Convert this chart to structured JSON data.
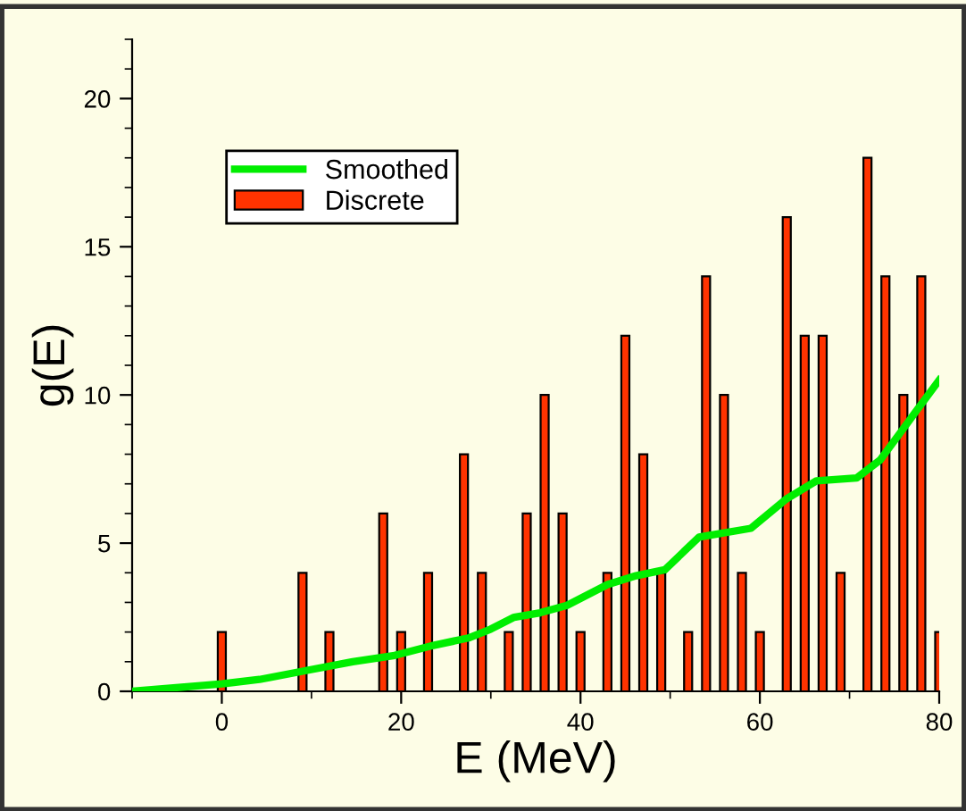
{
  "chart_data": {
    "type": "bar",
    "xlabel": "E (MeV)",
    "ylabel": "g(E)",
    "x": [
      0,
      9,
      12,
      18,
      20,
      23,
      27,
      29,
      32,
      34,
      36,
      38,
      40,
      43,
      45,
      47,
      49,
      52,
      54,
      56,
      58,
      60,
      63,
      65,
      67,
      69,
      72,
      74,
      76,
      78,
      80
    ],
    "series": [
      {
        "name": "Smoothed",
        "type": "line",
        "color": "#00ee00",
        "x": [
          -10,
          0,
          4.2,
          9.4,
          14.6,
          19.1,
          23.6,
          27.5,
          30,
          32.6,
          35.5,
          38.5,
          43,
          46.2,
          49.4,
          53.2,
          59,
          63,
          66.3,
          70.8,
          73.4,
          77.3,
          80
        ],
        "values": [
          0,
          0.25,
          0.4,
          0.7,
          1.0,
          1.2,
          1.55,
          1.8,
          2.1,
          2.5,
          2.65,
          2.9,
          3.6,
          3.9,
          4.1,
          5.2,
          5.5,
          6.5,
          7.1,
          7.2,
          7.8,
          9.4,
          10.5
        ]
      },
      {
        "name": "Discrete",
        "color": "#ff3300",
        "values": [
          2,
          4,
          2,
          6,
          2,
          4,
          8,
          4,
          2,
          6,
          10,
          6,
          2,
          4,
          12,
          8,
          4,
          2,
          14,
          10,
          4,
          2,
          16,
          12,
          12,
          4,
          18,
          14,
          10,
          14,
          2
        ]
      }
    ],
    "xlim": [
      -10,
      80
    ],
    "xticks": [
      0,
      20,
      40,
      60,
      80
    ],
    "ylim": [
      0,
      22
    ],
    "yticks": [
      0,
      5,
      10,
      15,
      20
    ],
    "legend": "top left",
    "grid": false
  }
}
